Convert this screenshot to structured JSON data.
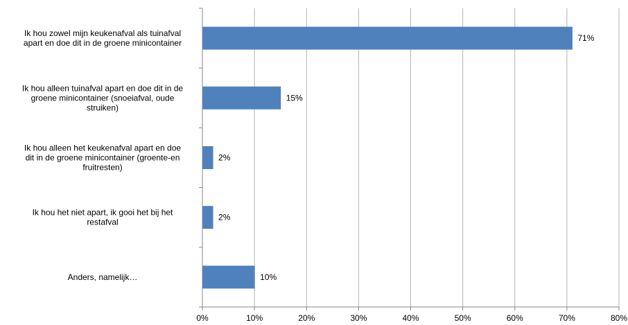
{
  "chart_data": {
    "type": "bar",
    "orientation": "horizontal",
    "title": "",
    "xlabel": "",
    "ylabel": "",
    "xlim": [
      0,
      80
    ],
    "x_ticks": [
      "0%",
      "10%",
      "20%",
      "30%",
      "40%",
      "50%",
      "60%",
      "70%",
      "80%"
    ],
    "grid": "vertical",
    "legend": "none",
    "bar_color": "#4f81bd",
    "categories": [
      [
        "Ik hou zowel mijn keukenafval als tuinafval",
        "apart en doe dit in de groene minicontainer"
      ],
      [
        "Ik hou alleen tuinafval apart en doe dit in de",
        "groene minicontainer (snoeiafval, oude",
        "struiken)"
      ],
      [
        "Ik hou alleen het keukenafval apart en doe",
        "dit in de groene minicontainer (groente-en",
        "fruitresten)"
      ],
      [
        "Ik hou het niet apart, ik gooi het bij het",
        "restafval"
      ],
      [
        "Anders, namelijk…"
      ]
    ],
    "values": [
      71,
      15,
      2,
      2,
      10
    ],
    "data_labels": [
      "71%",
      "15%",
      "2%",
      "2%",
      "10%"
    ]
  }
}
